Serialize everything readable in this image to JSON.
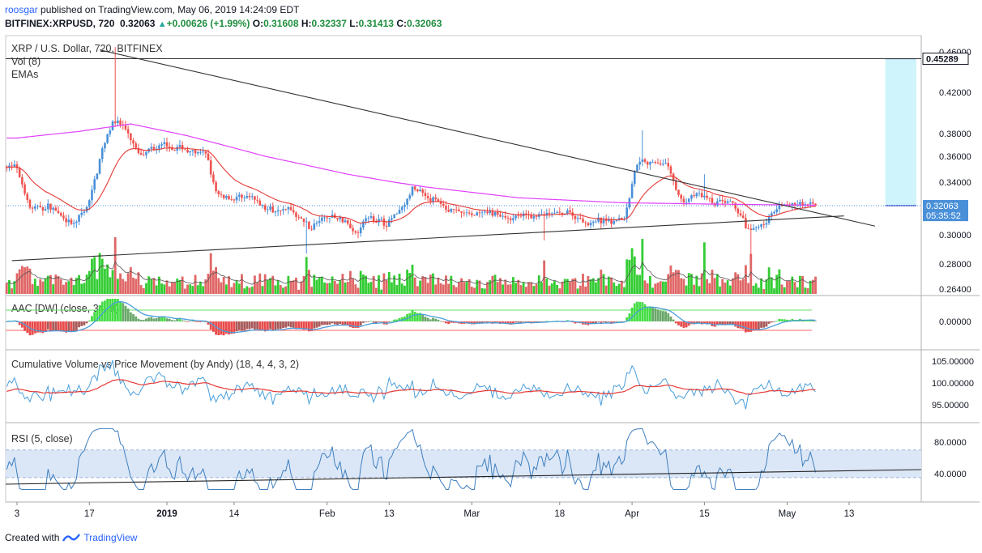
{
  "header": {
    "user": "roosgar",
    "published_text": "published on TradingView.com, May 06, 2019 14:24:09 EDT",
    "symbol": "BITFINEX:XRPUSD, 720",
    "last": "0.32063",
    "change": "+0.00626 (+1.99%)",
    "open_label": "O:",
    "open": "0.31608",
    "high_label": "H:",
    "high": "0.32337",
    "low_label": "L:",
    "low": "0.31413",
    "close_label": "C:",
    "close": "0.32063"
  },
  "footer": {
    "created_with": "Created with",
    "brand": "TradingView",
    "icon": "tradingview-logo-icon"
  },
  "colors": {
    "up": "#26a69a",
    "upbar": "#4a90d9",
    "down": "#ef5350",
    "vol_up": "#33cc33",
    "vol_down": "#e06666",
    "ema_long": "#e040fb",
    "ema_short": "#e53935",
    "aac_line": "#4a9eda",
    "cv_blue": "#4a9eda",
    "cv_red": "#e53935",
    "rsi": "#3f7fbf",
    "rsi_band": "#dbe7f7",
    "price_line": "#4a90d9",
    "target_zone": "#cff4fb"
  },
  "chart_data": [
    {
      "type": "candlestick",
      "pane": "price",
      "legend": [
        "XRP / U.S. Dollar, 720, BITFINEX",
        "Vol (8)",
        "EMAs"
      ],
      "y_ticks": [
        "0.46000",
        "0.42000",
        "0.38000",
        "0.36000",
        "0.34000",
        "0.30000",
        "0.28000",
        "0.26400"
      ],
      "ylim": [
        0.258,
        0.468
      ],
      "price_tags": [
        {
          "label": "0.45289",
          "value": 0.45289,
          "style": "dark"
        },
        {
          "label": "0.32063",
          "value": 0.32063,
          "style": "blue"
        },
        {
          "label": "05:35:52",
          "value": 0.3135,
          "style": "blue"
        }
      ],
      "anchors": [
        [
          "2018-12-03",
          0.352
        ],
        [
          "2018-12-06",
          0.318
        ],
        [
          "2018-12-10",
          0.32
        ],
        [
          "2018-12-14",
          0.305
        ],
        [
          "2018-12-17",
          0.32
        ],
        [
          "2018-12-20",
          0.37
        ],
        [
          "2018-12-22",
          0.395
        ],
        [
          "2018-12-24",
          0.385
        ],
        [
          "2018-12-27",
          0.36
        ],
        [
          "2018-12-31",
          0.37
        ],
        [
          "2019-01-04",
          0.367
        ],
        [
          "2019-01-09",
          0.36
        ],
        [
          "2019-01-11",
          0.328
        ],
        [
          "2019-01-17",
          0.327
        ],
        [
          "2019-01-21",
          0.318
        ],
        [
          "2019-01-25",
          0.318
        ],
        [
          "2019-01-29",
          0.305
        ],
        [
          "2019-02-01",
          0.312
        ],
        [
          "2019-02-04",
          0.312
        ],
        [
          "2019-02-07",
          0.302
        ],
        [
          "2019-02-09",
          0.313
        ],
        [
          "2019-02-13",
          0.308
        ],
        [
          "2019-02-16",
          0.32
        ],
        [
          "2019-02-18",
          0.335
        ],
        [
          "2019-02-24",
          0.32
        ],
        [
          "2019-02-28",
          0.314
        ],
        [
          "2019-03-05",
          0.315
        ],
        [
          "2019-03-10",
          0.312
        ],
        [
          "2019-03-15",
          0.314
        ],
        [
          "2019-03-20",
          0.315
        ],
        [
          "2019-03-24",
          0.308
        ],
        [
          "2019-03-28",
          0.31
        ],
        [
          "2019-03-31",
          0.312
        ],
        [
          "2019-04-02",
          0.355
        ],
        [
          "2019-04-05",
          0.356
        ],
        [
          "2019-04-08",
          0.354
        ],
        [
          "2019-04-11",
          0.323
        ],
        [
          "2019-04-14",
          0.33
        ],
        [
          "2019-04-17",
          0.323
        ],
        [
          "2019-04-21",
          0.322
        ],
        [
          "2019-04-24",
          0.3
        ],
        [
          "2019-04-27",
          0.308
        ],
        [
          "2019-04-30",
          0.323
        ],
        [
          "2019-05-06",
          0.32063
        ]
      ],
      "ema_long_anchors": [
        [
          "2018-12-03",
          0.376
        ],
        [
          "2018-12-15",
          0.382
        ],
        [
          "2018-12-25",
          0.389
        ],
        [
          "2019-01-05",
          0.378
        ],
        [
          "2019-01-20",
          0.36
        ],
        [
          "2019-02-05",
          0.346
        ],
        [
          "2019-02-20",
          0.336
        ],
        [
          "2019-03-10",
          0.327
        ],
        [
          "2019-03-30",
          0.323
        ],
        [
          "2019-04-15",
          0.322
        ],
        [
          "2019-05-06",
          0.321
        ]
      ],
      "trendlines": [
        {
          "name": "upper",
          "from": [
            "2018-12-19",
            0.462
          ],
          "to": [
            "2019-05-18",
            0.306
          ]
        },
        {
          "name": "lower",
          "from": [
            "2018-12-02",
            0.2822
          ],
          "to": [
            "2019-05-12",
            0.3132
          ]
        }
      ],
      "horizontal_line": {
        "value": 0.45289
      },
      "target_zone": {
        "from": "2019-05-20",
        "to": "2019-05-26",
        "top": 0.45289,
        "bottom": 0.32063
      },
      "volume": {
        "label": "Vol (8)"
      }
    },
    {
      "type": "histogram",
      "pane": "aac",
      "legend": "AAC [DW] (close, 34, 9)",
      "y_ticks": [
        "0.00000"
      ]
    },
    {
      "type": "line",
      "pane": "cumulative_volume",
      "legend": "Cumulative Volume vs Price Movement (by Andy) (18, 4, 4, 3, 2)",
      "y_ticks": [
        "105.00000",
        "100.00000",
        "95.00000"
      ],
      "ylim": [
        91.5,
        107
      ]
    },
    {
      "type": "line",
      "pane": "rsi",
      "legend": "RSI (5, close)",
      "y_ticks": [
        "80.0000",
        "40.0000"
      ],
      "ylim": [
        18,
        100
      ],
      "band": [
        35,
        70
      ]
    },
    {
      "type": "axis",
      "x_ticks": [
        {
          "label": "3",
          "date": "2018-12-03"
        },
        {
          "label": "17",
          "date": "2018-12-17"
        },
        {
          "label": "2019",
          "date": "2019-01-01",
          "bold": true
        },
        {
          "label": "14",
          "date": "2019-01-14"
        },
        {
          "label": "Feb",
          "date": "2019-02-01"
        },
        {
          "label": "13",
          "date": "2019-02-13"
        },
        {
          "label": "Mar",
          "date": "2019-03-01"
        },
        {
          "label": "18",
          "date": "2019-03-18"
        },
        {
          "label": "Apr",
          "date": "2019-04-01"
        },
        {
          "label": "15",
          "date": "2019-04-15"
        },
        {
          "label": "May",
          "date": "2019-05-01"
        },
        {
          "label": "13",
          "date": "2019-05-13"
        }
      ]
    }
  ]
}
